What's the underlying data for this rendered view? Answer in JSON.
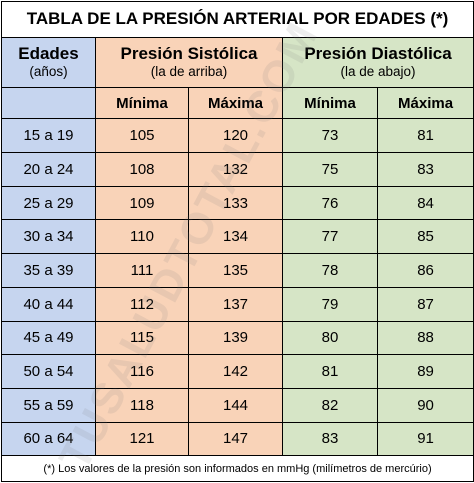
{
  "title": "TABLA DE LA PRESIÓN ARTERIAL POR EDADES (*)",
  "headers": {
    "age": {
      "label": "Edades",
      "unit": "(años)"
    },
    "systolic": {
      "label": "Presión Sistólica",
      "sub": "(la de arriba)"
    },
    "diastolic": {
      "label": "Presión Diastólica",
      "sub": "(la de abajo)"
    },
    "min": "Mínima",
    "max": "Máxima"
  },
  "rows": [
    {
      "age": "15 a 19",
      "sys_min": "105",
      "sys_max": "120",
      "dia_min": "73",
      "dia_max": "81"
    },
    {
      "age": "20 a 24",
      "sys_min": "108",
      "sys_max": "132",
      "dia_min": "75",
      "dia_max": "83"
    },
    {
      "age": "25 a 29",
      "sys_min": "109",
      "sys_max": "133",
      "dia_min": "76",
      "dia_max": "84"
    },
    {
      "age": "30 a 34",
      "sys_min": "110",
      "sys_max": "134",
      "dia_min": "77",
      "dia_max": "85"
    },
    {
      "age": "35 a 39",
      "sys_min": "111",
      "sys_max": "135",
      "dia_min": "78",
      "dia_max": "86"
    },
    {
      "age": "40 a 44",
      "sys_min": "112",
      "sys_max": "137",
      "dia_min": "79",
      "dia_max": "87"
    },
    {
      "age": "45 a 49",
      "sys_min": "115",
      "sys_max": "139",
      "dia_min": "80",
      "dia_max": "88"
    },
    {
      "age": "50 a 54",
      "sys_min": "116",
      "sys_max": "142",
      "dia_min": "81",
      "dia_max": "89"
    },
    {
      "age": "55 a 59",
      "sys_min": "118",
      "sys_max": "144",
      "dia_min": "82",
      "dia_max": "90"
    },
    {
      "age": "60 a 64",
      "sys_min": "121",
      "sys_max": "147",
      "dia_min": "83",
      "dia_max": "91"
    }
  ],
  "footnote": "(*) Los valores de la presión son informados en mmHg (milímetros de mercúrio)",
  "watermark": "TUSALUDTOTAL.COM",
  "colors": {
    "age_column": "#c6d5ef",
    "systolic_columns": "#f9d3b8",
    "diastolic_columns": "#d6e5c6"
  }
}
